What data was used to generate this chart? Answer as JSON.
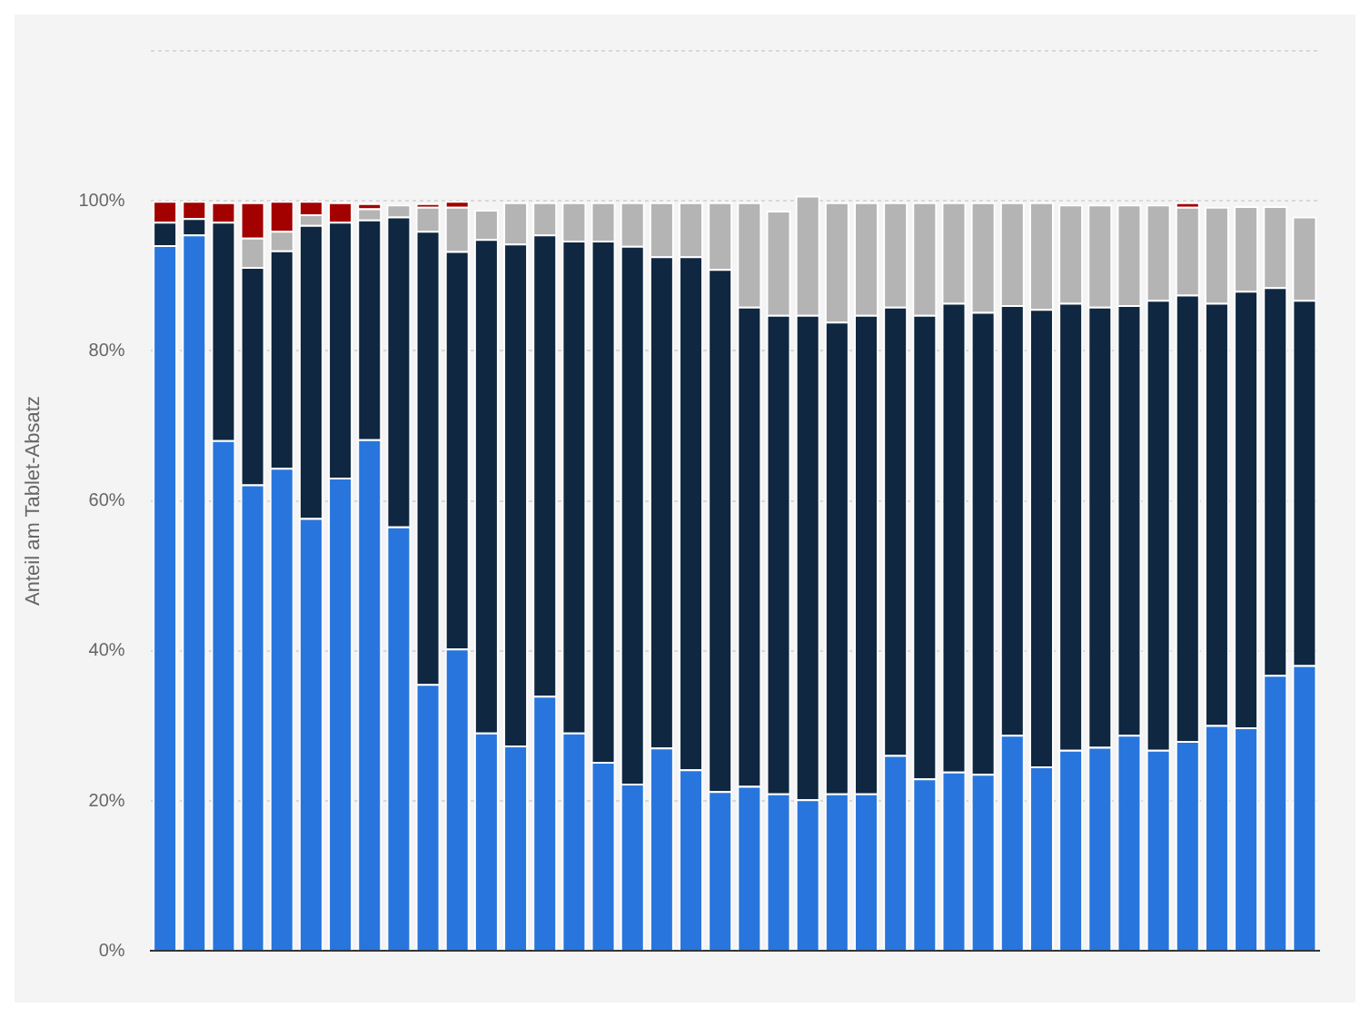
{
  "chart_data": {
    "type": "bar",
    "stacked": true,
    "ylabel": "Anteil am Tablet-Absatz",
    "categories": [
      null,
      null,
      null,
      null,
      null,
      null,
      null,
      null,
      null,
      null,
      null,
      null,
      null,
      null,
      null,
      null,
      null,
      null,
      null,
      null,
      null,
      null,
      null,
      null,
      null,
      null,
      null,
      null,
      null,
      null,
      null,
      null,
      null,
      null,
      null,
      null,
      null,
      null,
      null,
      null
    ],
    "series": [
      {
        "color": "#2876dd",
        "values": [
          94.1,
          95.5,
          68.1,
          62.2,
          64.4,
          57.7,
          63.1,
          68.2,
          56.6,
          35.6,
          40.3,
          29.1,
          27.4,
          34.0,
          29.1,
          25.2,
          22.3,
          27.1,
          24.2,
          21.3,
          22.0,
          21.0,
          20.2,
          21.0,
          21.0,
          26.1,
          23.0,
          23.9,
          23.6,
          28.8,
          24.6,
          26.8,
          27.2,
          28.8,
          26.8,
          28.0,
          30.1,
          29.8,
          36.8,
          38.1
        ]
      },
      {
        "color": "#0f2740",
        "values": [
          3.1,
          2.2,
          29.1,
          29.0,
          29.0,
          39.1,
          34.1,
          29.3,
          41.3,
          60.4,
          53.0,
          65.8,
          66.9,
          61.5,
          65.6,
          69.5,
          71.7,
          65.5,
          68.4,
          69.6,
          63.9,
          63.8,
          64.6,
          62.9,
          63.8,
          59.8,
          61.8,
          62.5,
          61.6,
          57.3,
          61.0,
          59.6,
          58.7,
          57.3,
          60.0,
          59.5,
          56.3,
          58.2,
          51.7,
          48.7
        ]
      },
      {
        "color": "#b4b4b4",
        "values": [
          0,
          0,
          0,
          3.9,
          2.6,
          1.4,
          0,
          1.5,
          1.6,
          3.2,
          5.9,
          3.9,
          5.5,
          4.3,
          5.1,
          5.1,
          5.8,
          7.2,
          7.2,
          8.9,
          13.9,
          13.9,
          15.9,
          15.9,
          15.0,
          13.9,
          15.0,
          13.4,
          14.6,
          13.7,
          14.2,
          13.1,
          13.6,
          13.4,
          12.7,
          11.7,
          12.8,
          11.3,
          10.8,
          11.1
        ]
      },
      {
        "color": "#a30000",
        "values": [
          2.8,
          2.3,
          2.6,
          4.7,
          4.0,
          1.8,
          2.6,
          0.7,
          0,
          0.5,
          0.8,
          0,
          0,
          0,
          0,
          0,
          0,
          0,
          0,
          0,
          0,
          0,
          0,
          0,
          0,
          0,
          0,
          0,
          0,
          0,
          0,
          0,
          0,
          0,
          0,
          0.6,
          0,
          0,
          0,
          0
        ]
      }
    ],
    "ylim": [
      0,
      120
    ],
    "yticks": [
      {
        "value": 0,
        "label": "0%"
      },
      {
        "value": 20,
        "label": "20%"
      },
      {
        "value": 40,
        "label": "40%"
      },
      {
        "value": 60,
        "label": "60%"
      },
      {
        "value": 80,
        "label": "80%"
      },
      {
        "value": 100,
        "label": "100%"
      },
      {
        "value": 120,
        "label": null
      }
    ],
    "grid": "y",
    "legend": false
  }
}
